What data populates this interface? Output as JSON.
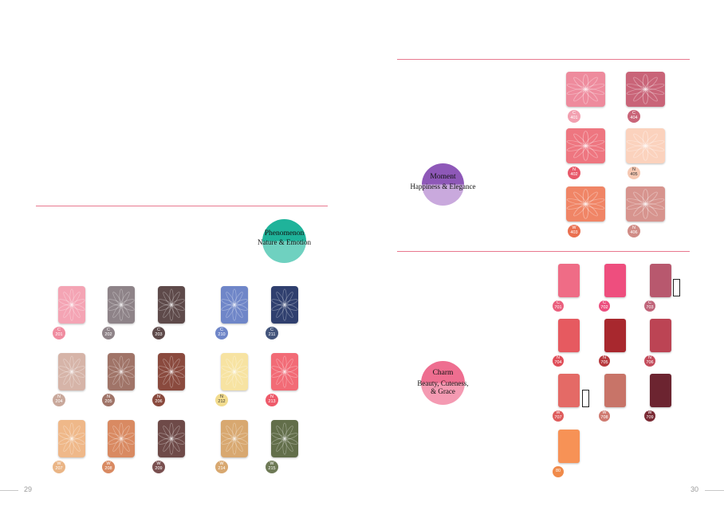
{
  "left_page": {
    "page_number": "29",
    "badge": {
      "title": "Phenomenon",
      "subtitle": "Nature & Emotion",
      "color_top": "#1fb39a",
      "color_bottom": "#6fd1c0"
    },
    "shades": [
      {
        "code": "C",
        "num": "201",
        "color": "#f4a4b4",
        "dot": "#f08ca0"
      },
      {
        "code": "C",
        "num": "202",
        "color": "#8e8388",
        "dot": "#8e8388"
      },
      {
        "code": "C",
        "num": "203",
        "color": "#5e4a4a",
        "dot": "#5e4a4a"
      },
      {
        "code": "C",
        "num": "210",
        "color": "#6f86c8",
        "dot": "#6f86c8"
      },
      {
        "code": "C",
        "num": "211",
        "color": "#2f3f6e",
        "dot": "#44557c"
      },
      {
        "code": "N",
        "num": "204",
        "color": "#d6b4a8",
        "dot": "#c9a89b"
      },
      {
        "code": "N",
        "num": "205",
        "color": "#a07468",
        "dot": "#a07468"
      },
      {
        "code": "N",
        "num": "206",
        "color": "#8a4a3e",
        "dot": "#8a4a3e"
      },
      {
        "code": "N",
        "num": "212",
        "color": "#f7e3a2",
        "dot": "#f2dc8e"
      },
      {
        "code": "N",
        "num": "213",
        "color": "#f26b76",
        "dot": "#ee5a6a"
      },
      {
        "code": "W",
        "num": "207",
        "color": "#efb889",
        "dot": "#eab586"
      },
      {
        "code": "W",
        "num": "208",
        "color": "#d98a62",
        "dot": "#d98a62"
      },
      {
        "code": "W",
        "num": "209",
        "color": "#6e4a48",
        "dot": "#7a5050"
      },
      {
        "code": "W",
        "num": "214",
        "color": "#d8a870",
        "dot": "#d8a870"
      },
      {
        "code": "W",
        "num": "215",
        "color": "#626e4a",
        "dot": "#6e7a56"
      }
    ]
  },
  "right_page": {
    "page_number": "30",
    "moment": {
      "badge": {
        "title": "Moment",
        "subtitle": "Happiness & Elegance",
        "color_top": "#8e58b8",
        "color_bottom": "#c9a9dd"
      },
      "shades": [
        {
          "code": "C",
          "num": "401",
          "color": "#ee8b9d",
          "dot": "#f2a0b0"
        },
        {
          "code": "C",
          "num": "404",
          "color": "#c96478",
          "dot": "#c96478"
        },
        {
          "code": "N",
          "num": "402",
          "color": "#ee7680",
          "dot": "#e85a6a"
        },
        {
          "code": "N",
          "num": "405",
          "color": "#fbd2bd",
          "dot": "#f6c8b2"
        },
        {
          "code": "W",
          "num": "403",
          "color": "#f08566",
          "dot": "#ea7050"
        },
        {
          "code": "N",
          "num": "406",
          "color": "#d7948e",
          "dot": "#d08c86"
        }
      ]
    },
    "charm": {
      "badge": {
        "title": "Charm",
        "subtitle_line1": "Beauty, Cuteness,",
        "subtitle_line2": "& Grace",
        "color_top": "#ee6e90",
        "color_bottom": "#f49ab2"
      },
      "shades": [
        {
          "code": "C",
          "num": "701",
          "color": "#ef6c86",
          "dot": "#ea5f7d"
        },
        {
          "code": "C",
          "num": "702",
          "color": "#ee4e7e",
          "dot": "#ec4f7f"
        },
        {
          "code": "C",
          "num": "703",
          "color": "#b8586e",
          "dot": "#c0657a"
        },
        {
          "code": "N",
          "num": "704",
          "color": "#e65a60",
          "dot": "#e04d58"
        },
        {
          "code": "N",
          "num": "705",
          "color": "#a8282e",
          "dot": "#b63a3e"
        },
        {
          "code": "N",
          "num": "706",
          "color": "#bc4454",
          "dot": "#c44c5c"
        },
        {
          "code": "W",
          "num": "707",
          "color": "#e46a66",
          "dot": "#de5c5c"
        },
        {
          "code": "W",
          "num": "708",
          "color": "#c87468",
          "dot": "#cf7a70"
        },
        {
          "code": "W",
          "num": "709",
          "color": "#6c2430",
          "dot": "#7a2a34"
        },
        {
          "code": "",
          "num": "80",
          "color": "#f79256",
          "dot": "#f08a4a"
        }
      ]
    }
  }
}
